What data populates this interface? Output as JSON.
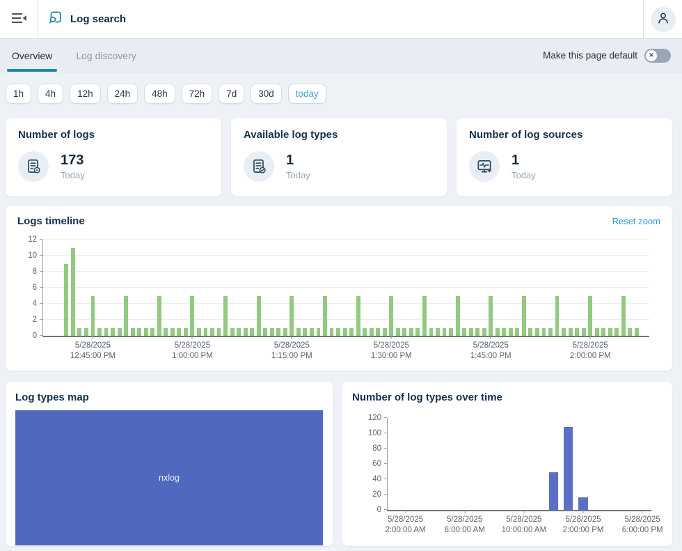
{
  "header": {
    "title": "Log search"
  },
  "tabs": {
    "overview": "Overview",
    "log_discovery": "Log discovery",
    "make_default_label": "Make this page default",
    "make_default_state": "off"
  },
  "time_ranges": [
    "1h",
    "4h",
    "12h",
    "24h",
    "48h",
    "72h",
    "7d",
    "30d",
    "today"
  ],
  "active_time_range": "today",
  "stat_cards": [
    {
      "title": "Number of logs",
      "value": "173",
      "period": "Today",
      "icon": "log-file-icon"
    },
    {
      "title": "Available log types",
      "value": "1",
      "period": "Today",
      "icon": "log-type-icon"
    },
    {
      "title": "Number of log sources",
      "value": "1",
      "period": "Today",
      "icon": "log-source-icon"
    }
  ],
  "timeline": {
    "title": "Logs timeline",
    "reset_zoom": "Reset zoom"
  },
  "types_map": {
    "title": "Log types map",
    "label": "nxlog",
    "color": "#5069bf"
  },
  "types_over_time": {
    "title": "Number of log types over time"
  },
  "colors": {
    "accent_teal": "#1b87ac",
    "link_blue": "#2f9cd8",
    "today_blue": "#45a5d6",
    "timeline_bar_green": "#92ca80",
    "types_bar_indigo": "#5b6fc5",
    "treemap_indigo": "#5069bf"
  },
  "chart_data": [
    {
      "type": "bar",
      "title": "Logs timeline",
      "color": "#92ca80",
      "ylim": [
        0,
        12
      ],
      "yticks": [
        0,
        2,
        4,
        6,
        8,
        10,
        12
      ],
      "grid": true,
      "x_start": "5/28/2025 12:41:00 PM",
      "x_interval_minutes": 1,
      "values": [
        9,
        11,
        1,
        1,
        5,
        1,
        1,
        1,
        1,
        5,
        1,
        1,
        1,
        1,
        5,
        1,
        1,
        1,
        1,
        5,
        1,
        1,
        1,
        1,
        5,
        1,
        1,
        1,
        1,
        5,
        1,
        1,
        1,
        1,
        5,
        1,
        1,
        1,
        1,
        5,
        1,
        1,
        1,
        1,
        5,
        1,
        1,
        1,
        1,
        5,
        1,
        1,
        1,
        1,
        5,
        1,
        1,
        1,
        1,
        5,
        1,
        1,
        1,
        1,
        5,
        1,
        1,
        1,
        1,
        5,
        1,
        1,
        1,
        1,
        5,
        1,
        1,
        1,
        1,
        5,
        1,
        1,
        1,
        1,
        5,
        1,
        1
      ],
      "total": 173,
      "xlim_minutes": [
        -3.5,
        87.9
      ],
      "xticks": [
        {
          "min": 4,
          "label": [
            "5/28/2025",
            "12:45:00 PM"
          ]
        },
        {
          "min": 19,
          "label": [
            "5/28/2025",
            "1:00:00 PM"
          ]
        },
        {
          "min": 34,
          "label": [
            "5/28/2025",
            "1:15:00 PM"
          ]
        },
        {
          "min": 49,
          "label": [
            "5/28/2025",
            "1:30:00 PM"
          ]
        },
        {
          "min": 64,
          "label": [
            "5/28/2025",
            "1:45:00 PM"
          ]
        },
        {
          "min": 79,
          "label": [
            "5/28/2025",
            "2:00:00 PM"
          ]
        }
      ]
    },
    {
      "type": "bar",
      "title": "Number of log types over time",
      "color": "#5b6fc5",
      "ylim": [
        0,
        120
      ],
      "yticks": [
        0,
        20,
        40,
        60,
        80,
        100,
        120
      ],
      "grid": false,
      "bars": [
        {
          "hour": 12,
          "time": "5/28/2025 12:00:00 PM",
          "value": 49
        },
        {
          "hour": 13,
          "time": "5/28/2025 1:00:00 PM",
          "value": 108
        },
        {
          "hour": 14,
          "time": "5/28/2025 2:00:00 PM",
          "value": 16
        }
      ],
      "xlim_hours": [
        0.8,
        18.6
      ],
      "xticks": [
        {
          "hour": 2,
          "label": [
            "5/28/2025",
            "2:00:00 AM"
          ]
        },
        {
          "hour": 6,
          "label": [
            "5/28/2025",
            "6:00:00 AM"
          ]
        },
        {
          "hour": 10,
          "label": [
            "5/28/2025",
            "10:00:00 AM"
          ]
        },
        {
          "hour": 14,
          "label": [
            "5/28/2025",
            "2:00:00 PM"
          ]
        },
        {
          "hour": 18,
          "label": [
            "5/28/2025",
            "6:00:00 PM"
          ]
        }
      ]
    }
  ]
}
